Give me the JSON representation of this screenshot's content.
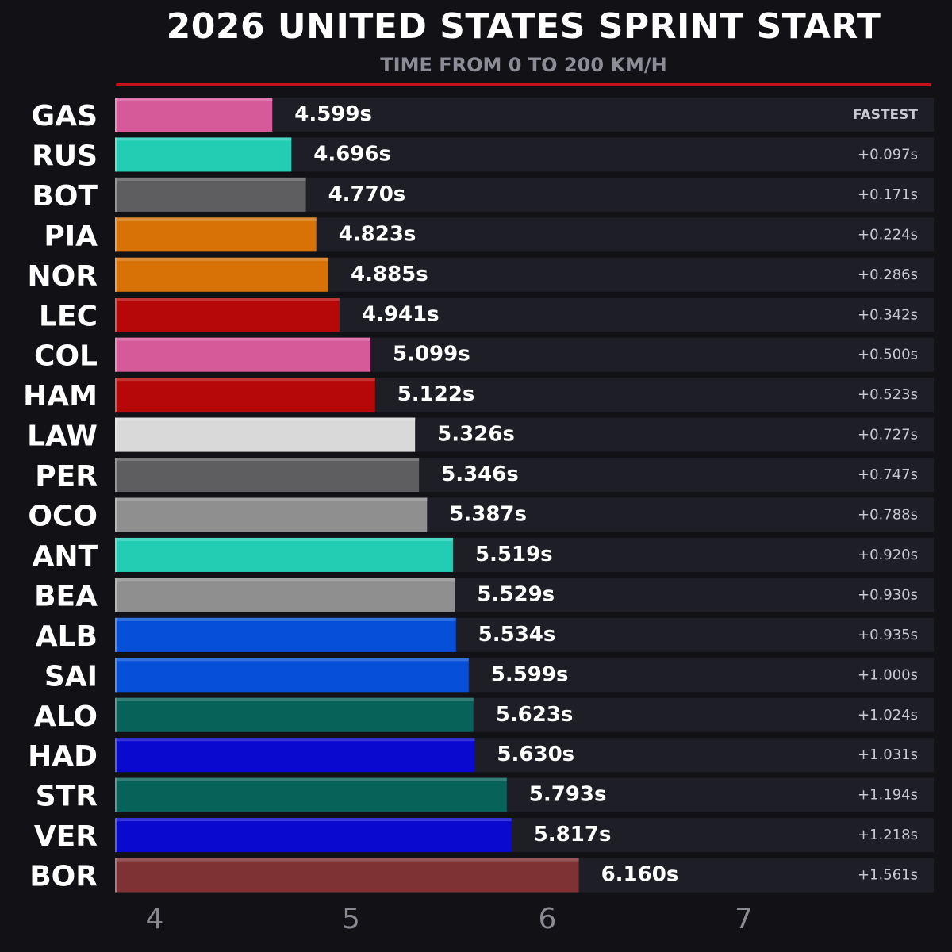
{
  "title": "2026 UNITED STATES SPRINT START",
  "subtitle": "TIME FROM 0 TO 200 KM/H",
  "chart_data": {
    "type": "bar",
    "orientation": "horizontal",
    "title": "2026 UNITED STATES SPRINT START",
    "subtitle": "TIME FROM 0 TO 200 KM/H",
    "xlim": [
      3.78,
      7.0
    ],
    "xticks": [
      "4",
      "5",
      "6",
      "7"
    ],
    "accent_color": "#c4101a",
    "rows": [
      {
        "driver": "GAS",
        "value": 4.599,
        "label": "4.599s",
        "gap": "FASTEST",
        "color": "#d6599a"
      },
      {
        "driver": "RUS",
        "value": 4.696,
        "label": "4.696s",
        "gap": "+0.097s",
        "color": "#22cdb4"
      },
      {
        "driver": "BOT",
        "value": 4.77,
        "label": "4.770s",
        "gap": "+0.171s",
        "color": "#5e5e60"
      },
      {
        "driver": "PIA",
        "value": 4.823,
        "label": "4.823s",
        "gap": "+0.224s",
        "color": "#d87106"
      },
      {
        "driver": "NOR",
        "value": 4.885,
        "label": "4.885s",
        "gap": "+0.286s",
        "color": "#d87106"
      },
      {
        "driver": "LEC",
        "value": 4.941,
        "label": "4.941s",
        "gap": "+0.342s",
        "color": "#b60808"
      },
      {
        "driver": "COL",
        "value": 5.099,
        "label": "5.099s",
        "gap": "+0.500s",
        "color": "#d6599a"
      },
      {
        "driver": "HAM",
        "value": 5.122,
        "label": "5.122s",
        "gap": "+0.523s",
        "color": "#b60808"
      },
      {
        "driver": "LAW",
        "value": 5.326,
        "label": "5.326s",
        "gap": "+0.727s",
        "color": "#d9d9d9"
      },
      {
        "driver": "PER",
        "value": 5.346,
        "label": "5.346s",
        "gap": "+0.747s",
        "color": "#5e5e60"
      },
      {
        "driver": "OCO",
        "value": 5.387,
        "label": "5.387s",
        "gap": "+0.788s",
        "color": "#8f8f8f"
      },
      {
        "driver": "ANT",
        "value": 5.519,
        "label": "5.519s",
        "gap": "+0.920s",
        "color": "#22cdb4"
      },
      {
        "driver": "BEA",
        "value": 5.529,
        "label": "5.529s",
        "gap": "+0.930s",
        "color": "#8f8f8f"
      },
      {
        "driver": "ALB",
        "value": 5.534,
        "label": "5.534s",
        "gap": "+0.935s",
        "color": "#0650d9"
      },
      {
        "driver": "SAI",
        "value": 5.599,
        "label": "5.599s",
        "gap": "+1.000s",
        "color": "#0650d9"
      },
      {
        "driver": "ALO",
        "value": 5.623,
        "label": "5.623s",
        "gap": "+1.024s",
        "color": "#07625a"
      },
      {
        "driver": "HAD",
        "value": 5.63,
        "label": "5.630s",
        "gap": "+1.031s",
        "color": "#0a09d0"
      },
      {
        "driver": "STR",
        "value": 5.793,
        "label": "5.793s",
        "gap": "+1.194s",
        "color": "#07625a"
      },
      {
        "driver": "VER",
        "value": 5.817,
        "label": "5.817s",
        "gap": "+1.218s",
        "color": "#0a09d0"
      },
      {
        "driver": "BOR",
        "value": 6.16,
        "label": "6.160s",
        "gap": "+1.561s",
        "color": "#7e3234"
      }
    ]
  }
}
